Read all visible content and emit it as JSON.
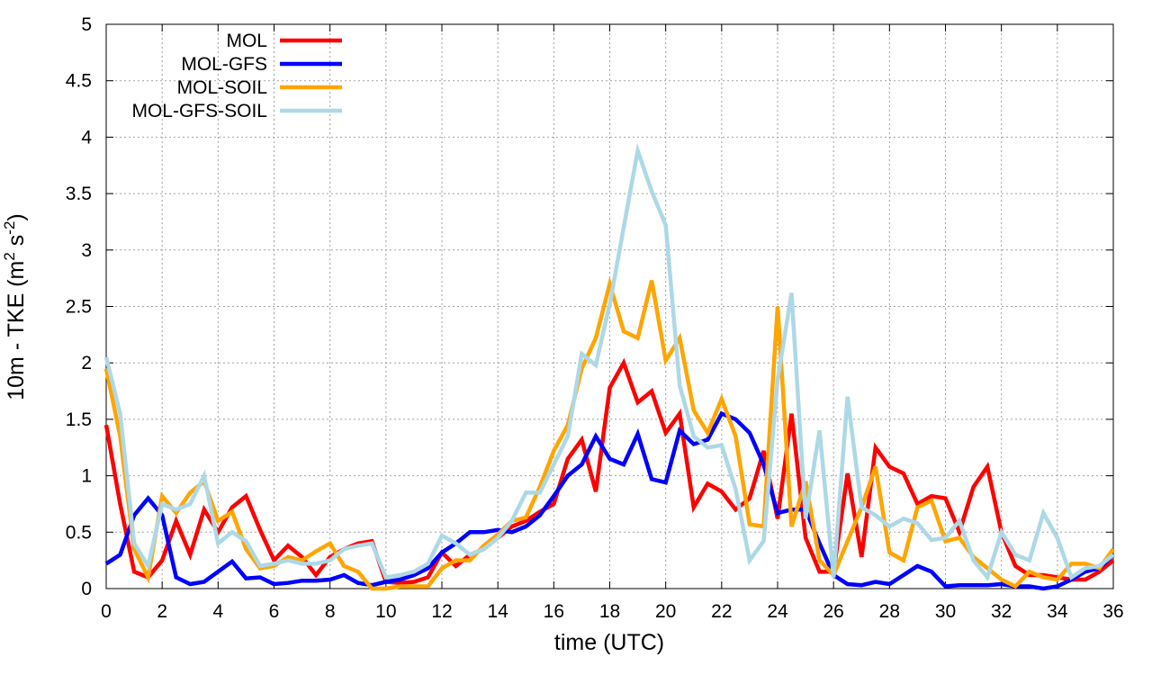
{
  "chart_data": {
    "type": "line",
    "title": "",
    "xlabel": "time (UTC)",
    "ylabel": "10m - TKE (m",
    "ylabel_sup1": "2",
    "ylabel_mid": " s",
    "ylabel_sup2": "-2",
    "ylabel_end": ")",
    "xlim": [
      0,
      36
    ],
    "ylim": [
      0,
      5
    ],
    "xticks": [
      0,
      2,
      4,
      6,
      8,
      10,
      12,
      14,
      16,
      18,
      20,
      22,
      24,
      26,
      28,
      30,
      32,
      34,
      36
    ],
    "xtick_labels": [
      "0",
      "2",
      "4",
      "6",
      "8",
      "10",
      "12",
      "14",
      "16",
      "18",
      "20",
      "22",
      "24",
      "26",
      "28",
      "30",
      "32",
      "34",
      "36"
    ],
    "yticks": [
      0,
      0.5,
      1,
      1.5,
      2,
      2.5,
      3,
      3.5,
      4,
      4.5,
      5
    ],
    "ytick_labels": [
      "0",
      "0.5",
      "1",
      "1.5",
      "2",
      "2.5",
      "3",
      "3.5",
      "4",
      "4.5",
      "5"
    ],
    "grid": true,
    "legend_position": "top-left",
    "x": [
      0,
      0.5,
      1,
      1.5,
      2,
      2.5,
      3,
      3.5,
      4,
      4.5,
      5,
      5.5,
      6,
      6.5,
      7,
      7.5,
      8,
      8.5,
      9,
      9.5,
      10,
      10.5,
      11,
      11.5,
      12,
      12.5,
      13,
      13.5,
      14,
      14.5,
      15,
      15.5,
      16,
      16.5,
      17,
      17.5,
      18,
      18.5,
      19,
      19.5,
      20,
      20.5,
      21,
      21.5,
      22,
      22.5,
      23,
      23.5,
      24,
      24.5,
      25,
      25.5,
      26,
      26.5,
      27,
      27.5,
      28,
      28.5,
      29,
      29.5,
      30,
      30.5,
      31,
      31.5,
      32,
      32.5,
      33,
      33.5,
      34,
      34.5,
      35,
      35.5,
      36
    ],
    "series": [
      {
        "name": "MOL",
        "color": "#ff0000",
        "values": [
          1.45,
          0.75,
          0.15,
          0.1,
          0.25,
          0.6,
          0.3,
          0.7,
          0.5,
          0.72,
          0.82,
          0.52,
          0.25,
          0.38,
          0.28,
          0.12,
          0.28,
          0.35,
          0.4,
          0.42,
          0.06,
          0.05,
          0.06,
          0.1,
          0.32,
          0.2,
          0.3,
          0.35,
          0.45,
          0.55,
          0.6,
          0.68,
          0.75,
          1.15,
          1.32,
          0.86,
          1.78,
          2.0,
          1.65,
          1.75,
          1.38,
          1.55,
          0.72,
          0.93,
          0.86,
          0.7,
          0.8,
          1.22,
          0.62,
          1.55,
          0.45,
          0.15,
          0.15,
          1.02,
          0.28,
          1.25,
          1.08,
          1.02,
          0.75,
          0.82,
          0.8,
          0.5,
          0.9,
          1.08,
          0.5,
          0.2,
          0.12,
          0.12,
          0.1,
          0.08,
          0.08,
          0.15,
          0.25
        ]
      },
      {
        "name": "MOL-GFS",
        "color": "#0000ff",
        "values": [
          0.22,
          0.3,
          0.65,
          0.8,
          0.65,
          0.1,
          0.04,
          0.06,
          0.15,
          0.24,
          0.09,
          0.1,
          0.04,
          0.05,
          0.07,
          0.07,
          0.08,
          0.12,
          0.05,
          0.03,
          0.06,
          0.08,
          0.12,
          0.18,
          0.32,
          0.4,
          0.5,
          0.5,
          0.52,
          0.5,
          0.55,
          0.65,
          0.82,
          1.0,
          1.1,
          1.35,
          1.15,
          1.1,
          1.37,
          0.97,
          0.94,
          1.4,
          1.28,
          1.32,
          1.55,
          1.5,
          1.38,
          1.1,
          0.67,
          0.7,
          0.7,
          0.4,
          0.12,
          0.04,
          0.03,
          0.06,
          0.04,
          0.12,
          0.2,
          0.15,
          0.02,
          0.03,
          0.03,
          0.03,
          0.04,
          0.02,
          0.02,
          0.0,
          0.02,
          0.08,
          0.15,
          0.18,
          0.3
        ]
      },
      {
        "name": "MOL-SOIL",
        "color": "#ffa500",
        "values": [
          1.95,
          1.35,
          0.35,
          0.1,
          0.82,
          0.67,
          0.85,
          0.95,
          0.6,
          0.68,
          0.35,
          0.18,
          0.2,
          0.28,
          0.25,
          0.33,
          0.4,
          0.2,
          0.15,
          0.0,
          0.0,
          0.02,
          0.02,
          0.02,
          0.18,
          0.25,
          0.25,
          0.38,
          0.48,
          0.6,
          0.63,
          0.9,
          1.22,
          1.45,
          1.95,
          2.22,
          2.7,
          2.28,
          2.22,
          2.73,
          2.02,
          2.22,
          1.58,
          1.38,
          1.68,
          1.35,
          0.57,
          0.55,
          2.5,
          0.55,
          0.95,
          0.25,
          0.12,
          0.42,
          0.72,
          1.08,
          0.32,
          0.25,
          0.72,
          0.78,
          0.42,
          0.45,
          0.28,
          0.18,
          0.08,
          0.02,
          0.15,
          0.1,
          0.08,
          0.22,
          0.22,
          0.18,
          0.35
        ]
      },
      {
        "name": "MOL-GFS-SOIL",
        "color": "#add8e6",
        "values": [
          2.05,
          1.55,
          0.4,
          0.2,
          0.75,
          0.7,
          0.75,
          1.0,
          0.4,
          0.5,
          0.42,
          0.2,
          0.22,
          0.25,
          0.22,
          0.22,
          0.25,
          0.35,
          0.38,
          0.4,
          0.1,
          0.12,
          0.15,
          0.22,
          0.47,
          0.4,
          0.3,
          0.35,
          0.45,
          0.6,
          0.85,
          0.85,
          1.1,
          1.35,
          2.08,
          1.98,
          2.52,
          3.2,
          3.88,
          3.52,
          3.22,
          1.8,
          1.35,
          1.25,
          1.27,
          0.88,
          0.25,
          0.42,
          1.85,
          2.62,
          0.62,
          1.4,
          0.1,
          1.7,
          0.72,
          0.65,
          0.55,
          0.62,
          0.58,
          0.43,
          0.45,
          0.6,
          0.25,
          0.1,
          0.5,
          0.3,
          0.25,
          0.67,
          0.45,
          0.1,
          0.18,
          0.2,
          0.3
        ]
      }
    ]
  }
}
